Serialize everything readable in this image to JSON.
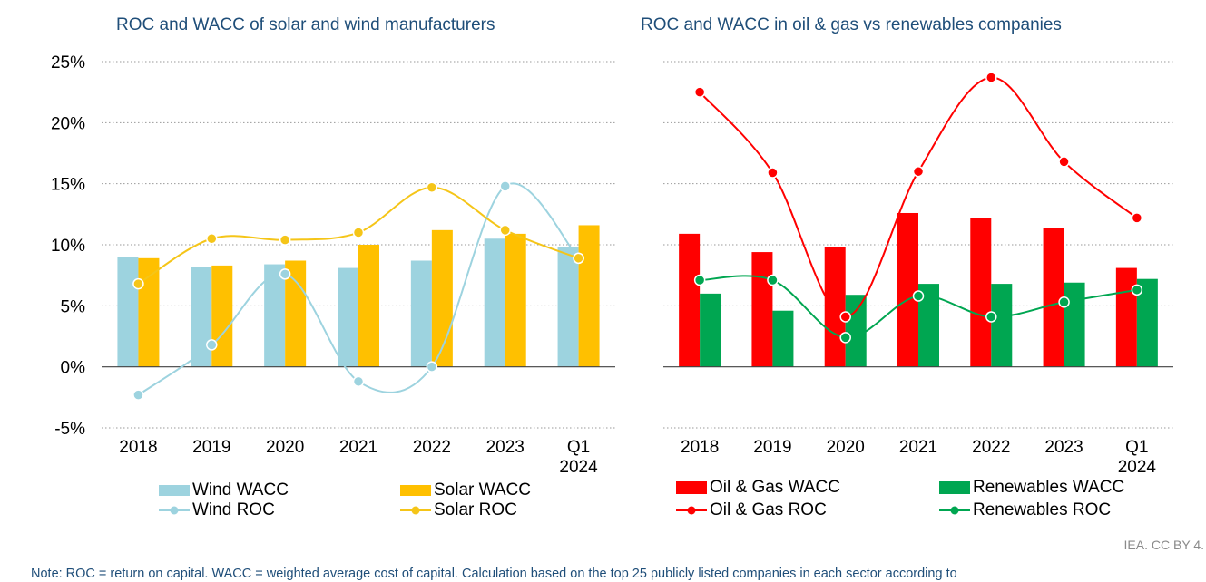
{
  "chart_data": [
    {
      "type": "bar",
      "title": "ROC and WACC of solar and wind manufacturers",
      "categories": [
        "2018",
        "2019",
        "2020",
        "2021",
        "2022",
        "2023",
        "Q1\n2024"
      ],
      "ylim": [
        -5,
        25
      ],
      "y_ticks": [
        -5,
        0,
        5,
        10,
        15,
        20,
        25
      ],
      "y_tick_labels": [
        "-5%",
        "0%",
        "5%",
        "10%",
        "15%",
        "20%",
        "25%"
      ],
      "bar_series": [
        {
          "name": "Wind WACC",
          "color": "#9dd3df",
          "values": [
            9.0,
            8.2,
            8.4,
            8.1,
            8.7,
            10.5,
            9.8
          ]
        },
        {
          "name": "Solar WACC",
          "color": "#ffc000",
          "values": [
            8.9,
            8.3,
            8.7,
            10.0,
            11.2,
            10.9,
            11.6
          ]
        }
      ],
      "line_series": [
        {
          "name": "Wind ROC",
          "color": "#9dd3df",
          "values": [
            -2.3,
            1.8,
            7.6,
            -1.2,
            0.0,
            14.8,
            8.9
          ]
        },
        {
          "name": "Solar ROC",
          "color": "#f5c518",
          "values": [
            6.8,
            10.5,
            10.4,
            11.0,
            14.7,
            11.2,
            8.9
          ]
        }
      ],
      "legend": {
        "wind_wacc": "Wind WACC",
        "solar_wacc": "Solar WACC",
        "wind_roc": "Wind ROC",
        "solar_roc": "Solar ROC"
      },
      "grid": true,
      "legend_position": "bottom"
    },
    {
      "type": "bar",
      "title": "ROC and WACC in oil & gas vs renewables companies",
      "categories": [
        "2018",
        "2019",
        "2020",
        "2021",
        "2022",
        "2023",
        "Q1\n2024"
      ],
      "ylim": [
        -5,
        25
      ],
      "y_ticks": [
        -5,
        0,
        5,
        10,
        15,
        20,
        25
      ],
      "bar_series": [
        {
          "name": "Oil & Gas WACC",
          "color": "#ff0000",
          "values": [
            10.9,
            9.4,
            9.8,
            12.6,
            12.2,
            11.4,
            8.1
          ]
        },
        {
          "name": "Renewables WACC",
          "color": "#00a651",
          "values": [
            6.0,
            4.6,
            5.9,
            6.8,
            6.8,
            6.9,
            7.2
          ]
        }
      ],
      "line_series": [
        {
          "name": "Oil & Gas ROC",
          "color": "#ff0000",
          "values": [
            22.5,
            15.9,
            4.1,
            16.0,
            23.7,
            16.8,
            12.2
          ]
        },
        {
          "name": "Renewables ROC",
          "color": "#00a651",
          "values": [
            7.1,
            7.1,
            2.4,
            5.8,
            4.1,
            5.3,
            6.3
          ]
        }
      ],
      "legend": {
        "og_wacc": "Oil & Gas WACC",
        "ren_wacc": "Renewables WACC",
        "og_roc": "Oil & Gas ROC",
        "ren_roc": "Renewables ROC"
      },
      "grid": true,
      "legend_position": "bottom"
    }
  ],
  "credit": "IEA. CC BY 4.",
  "note": "Note:  ROC = return on capital. WACC = weighted average cost of capital. Calculation based on the top 25 publicly listed companies in each sector according to"
}
